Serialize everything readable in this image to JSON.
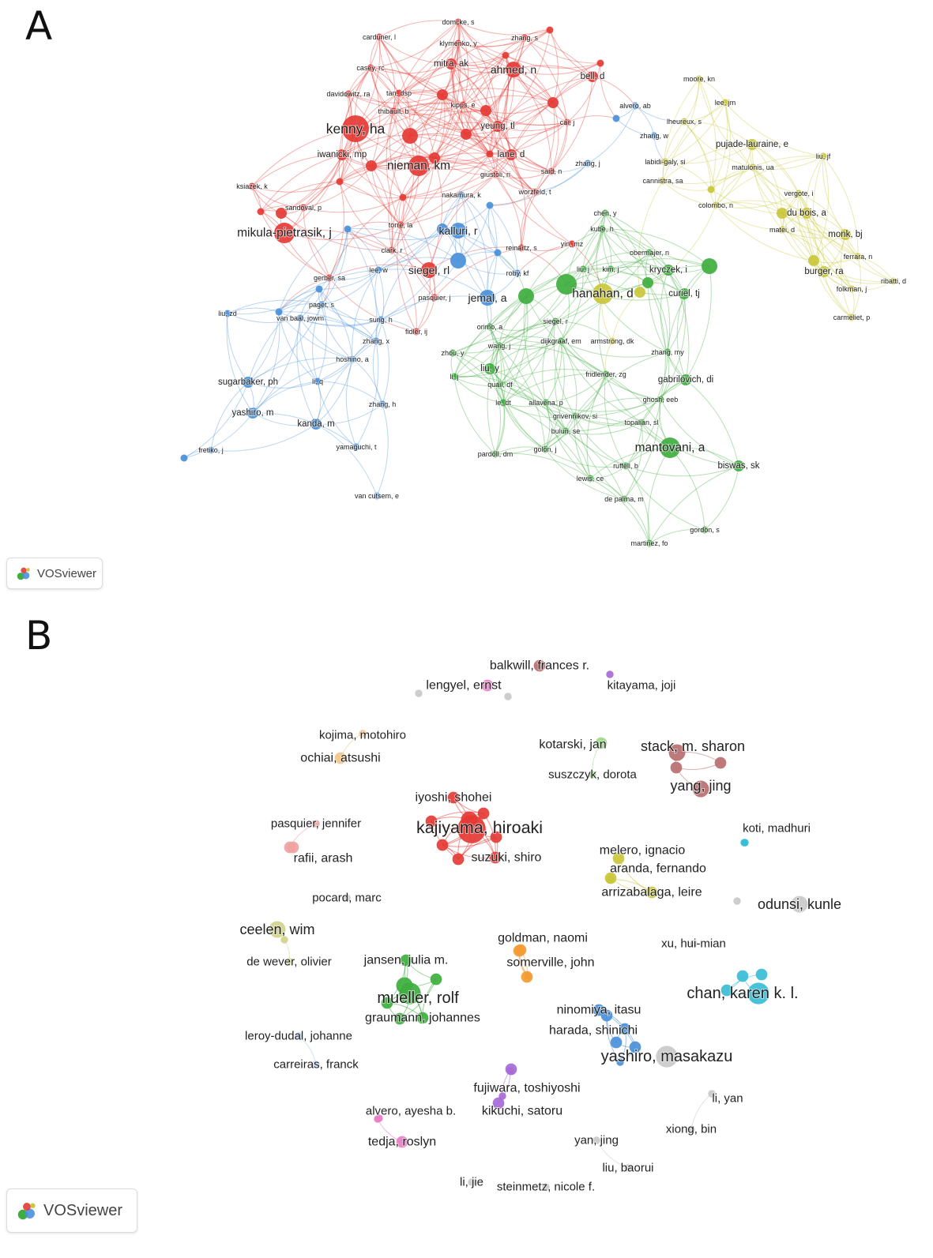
{
  "panels": {
    "a": {
      "letter": "A",
      "brand": "VOSviewer",
      "brand_icon": "vosviewer-logo-icon"
    },
    "b": {
      "letter": "B",
      "brand": "VOSviewer",
      "brand_icon": "vosviewer-logo-icon"
    }
  },
  "colors": {
    "red": "#e53935",
    "blue": "#4a90d9",
    "green": "#3fae3f",
    "yellow": "#c9c73a",
    "orange": "#f39c34",
    "purple": "#a66bd6",
    "pink": "#e67fc5",
    "cyan": "#39bdd6",
    "light_green": "#9ed68a",
    "brown": "#b96f6f",
    "salmon": "#f0a3a3",
    "olive": "#d0d48a",
    "grey": "#c9c9c9",
    "light_blue": "#a8c8ee",
    "tan": "#f2c48a"
  },
  "network_a": {
    "nodes": [
      {
        "label": "domcke, s",
        "c": "red",
        "s": 1
      },
      {
        "label": "carduner, l",
        "c": "red",
        "s": 1
      },
      {
        "label": "klymenko, y",
        "c": "red",
        "s": 1
      },
      {
        "label": "zhang, s",
        "c": "red",
        "s": 1
      },
      {
        "label": "mitra, ak",
        "c": "red",
        "s": 2
      },
      {
        "label": "ahmed, n",
        "c": "red",
        "s": 3
      },
      {
        "label": "casey, rc",
        "c": "red",
        "s": 1
      },
      {
        "label": "bell, d",
        "c": "red",
        "s": 2
      },
      {
        "label": "moore, kn",
        "c": "yellow",
        "s": 1
      },
      {
        "label": "davidowitz, ra",
        "c": "red",
        "s": 1
      },
      {
        "label": "tan, dsp",
        "c": "red",
        "s": 1
      },
      {
        "label": "thibault, b",
        "c": "red",
        "s": 1
      },
      {
        "label": "kipps, e",
        "c": "red",
        "s": 1
      },
      {
        "label": "alvero, ab",
        "c": "blue",
        "s": 1
      },
      {
        "label": "lee, jm",
        "c": "yellow",
        "s": 1
      },
      {
        "label": "kenny, ha",
        "c": "red",
        "s": 5
      },
      {
        "label": "yeung, tl",
        "c": "red",
        "s": 2
      },
      {
        "label": "cai, j",
        "c": "red",
        "s": 1
      },
      {
        "label": "lheureux, s",
        "c": "yellow",
        "s": 1
      },
      {
        "label": "zhang, w",
        "c": "blue",
        "s": 1
      },
      {
        "label": "pujade-lauraine, e",
        "c": "yellow",
        "s": 2
      },
      {
        "label": "iwanicki, mp",
        "c": "red",
        "s": 2
      },
      {
        "label": "lane, d",
        "c": "red",
        "s": 2
      },
      {
        "label": "liu, jf",
        "c": "yellow",
        "s": 1
      },
      {
        "label": "nieman, km",
        "c": "red",
        "s": 4
      },
      {
        "label": "zhang, j",
        "c": "blue",
        "s": 1
      },
      {
        "label": "labidi-galy, si",
        "c": "yellow",
        "s": 1
      },
      {
        "label": "matulonis, ua",
        "c": "yellow",
        "s": 1
      },
      {
        "label": "giustoli, ri",
        "c": "red",
        "s": 1
      },
      {
        "label": "said, n",
        "c": "red",
        "s": 1
      },
      {
        "label": "ksiazek, k",
        "c": "red",
        "s": 1
      },
      {
        "label": "cannistra, sa",
        "c": "yellow",
        "s": 1
      },
      {
        "label": "nakamura, k",
        "c": "blue",
        "s": 1
      },
      {
        "label": "worzfeld, t",
        "c": "red",
        "s": 1
      },
      {
        "label": "vergote, i",
        "c": "yellow",
        "s": 1
      },
      {
        "label": "sandoval, p",
        "c": "red",
        "s": 1
      },
      {
        "label": "colombo, n",
        "c": "yellow",
        "s": 1
      },
      {
        "label": "chen, y",
        "c": "green",
        "s": 1
      },
      {
        "label": "du bois, a",
        "c": "yellow",
        "s": 2
      },
      {
        "label": "mikula-pietrasik, j",
        "c": "red",
        "s": 4
      },
      {
        "label": "torre, la",
        "c": "red",
        "s": 1
      },
      {
        "label": "kalluri, r",
        "c": "blue",
        "s": 3
      },
      {
        "label": "kube, h",
        "c": "green",
        "s": 1
      },
      {
        "label": "matei, d",
        "c": "yellow",
        "s": 1
      },
      {
        "label": "monk, bj",
        "c": "yellow",
        "s": 2
      },
      {
        "label": "clark, r",
        "c": "red",
        "s": 1
      },
      {
        "label": "reinartz, s",
        "c": "red",
        "s": 1
      },
      {
        "label": "yin, mz",
        "c": "red",
        "s": 1
      },
      {
        "label": "obermajer, n",
        "c": "green",
        "s": 1
      },
      {
        "label": "ferrara, n",
        "c": "yellow",
        "s": 1
      },
      {
        "label": "lee, w",
        "c": "blue",
        "s": 1
      },
      {
        "label": "siegel, rl",
        "c": "red",
        "s": 3
      },
      {
        "label": "roby, kf",
        "c": "blue",
        "s": 1
      },
      {
        "label": "liu, j",
        "c": "green",
        "s": 1
      },
      {
        "label": "kim, j",
        "c": "green",
        "s": 1
      },
      {
        "label": "kryczek, i",
        "c": "green",
        "s": 2
      },
      {
        "label": "burger, ra",
        "c": "yellow",
        "s": 2
      },
      {
        "label": "ribatti, d",
        "c": "yellow",
        "s": 1
      },
      {
        "label": "gerber, sa",
        "c": "red",
        "s": 1
      },
      {
        "label": "pasquier, j",
        "c": "red",
        "s": 1
      },
      {
        "label": "jemal, a",
        "c": "blue",
        "s": 3
      },
      {
        "label": "hanahan, d",
        "c": "yellow",
        "s": 4
      },
      {
        "label": "curiel, tj",
        "c": "green",
        "s": 2
      },
      {
        "label": "folkman, j",
        "c": "yellow",
        "s": 1
      },
      {
        "label": "paget, s",
        "c": "blue",
        "s": 1
      },
      {
        "label": "liu, zd",
        "c": "blue",
        "s": 1
      },
      {
        "label": "van baal, jowm",
        "c": "blue",
        "s": 1
      },
      {
        "label": "sung, h",
        "c": "blue",
        "s": 1
      },
      {
        "label": "siegel, r",
        "c": "green",
        "s": 1
      },
      {
        "label": "fidler, ij",
        "c": "red",
        "s": 1
      },
      {
        "label": "orimo, a",
        "c": "green",
        "s": 1
      },
      {
        "label": "dijkgraaf, em",
        "c": "green",
        "s": 1
      },
      {
        "label": "armstrong, dk",
        "c": "yellow",
        "s": 1
      },
      {
        "label": "carmeliet, p",
        "c": "yellow",
        "s": 1
      },
      {
        "label": "zhang, x",
        "c": "blue",
        "s": 1
      },
      {
        "label": "wang, j",
        "c": "green",
        "s": 1
      },
      {
        "label": "zhang, my",
        "c": "green",
        "s": 1
      },
      {
        "label": "hoshino, a",
        "c": "blue",
        "s": 1
      },
      {
        "label": "zhou, y",
        "c": "green",
        "s": 1
      },
      {
        "label": "li, j",
        "c": "green",
        "s": 1
      },
      {
        "label": "liu, y",
        "c": "green",
        "s": 2
      },
      {
        "label": "fridlender, zg",
        "c": "green",
        "s": 1
      },
      {
        "label": "sugarbaker, ph",
        "c": "blue",
        "s": 2
      },
      {
        "label": "li, q",
        "c": "blue",
        "s": 1
      },
      {
        "label": "quail, df",
        "c": "green",
        "s": 1
      },
      {
        "label": "gabrilovich, di",
        "c": "green",
        "s": 2
      },
      {
        "label": "le, dt",
        "c": "green",
        "s": 1
      },
      {
        "label": "allavena, p",
        "c": "green",
        "s": 1
      },
      {
        "label": "ghosh, eeb",
        "c": "green",
        "s": 1
      },
      {
        "label": "zhang, h",
        "c": "blue",
        "s": 1
      },
      {
        "label": "yashiro, m",
        "c": "blue",
        "s": 2
      },
      {
        "label": "grivennikov, si",
        "c": "green",
        "s": 1
      },
      {
        "label": "topalian, sl",
        "c": "green",
        "s": 1
      },
      {
        "label": "kanda, m",
        "c": "blue",
        "s": 2
      },
      {
        "label": "bulun, se",
        "c": "green",
        "s": 1
      },
      {
        "label": "mantovani, a",
        "c": "green",
        "s": 4
      },
      {
        "label": "yamaguchi, t",
        "c": "blue",
        "s": 1
      },
      {
        "label": "golon, j",
        "c": "green",
        "s": 1
      },
      {
        "label": "pardoll, dm",
        "c": "green",
        "s": 1
      },
      {
        "label": "fretiko, j",
        "c": "blue",
        "s": 1
      },
      {
        "label": "ruffell, b",
        "c": "green",
        "s": 1
      },
      {
        "label": "biswas, sk",
        "c": "green",
        "s": 2
      },
      {
        "label": "lewis, ce",
        "c": "green",
        "s": 1
      },
      {
        "label": "van cutsem, e",
        "c": "blue",
        "s": 1
      },
      {
        "label": "de palma, m",
        "c": "green",
        "s": 1
      },
      {
        "label": "gordon, s",
        "c": "green",
        "s": 1
      },
      {
        "label": "martinez, fo",
        "c": "green",
        "s": 1
      }
    ]
  },
  "network_b": {
    "nodes": [
      {
        "label": "balkwill, frances r.",
        "c": "brown",
        "s": 2
      },
      {
        "label": "lengyel, ernst",
        "c": "pink",
        "s": 2
      },
      {
        "label": "kitayama, joji",
        "c": "purple",
        "s": 1
      },
      {
        "label": "kojima, motohiro",
        "c": "tan",
        "s": 1
      },
      {
        "label": "kotarski, jan",
        "c": "light_green",
        "s": 2
      },
      {
        "label": "stack, m. sharon",
        "c": "brown",
        "s": 3
      },
      {
        "label": "ochiai, atsushi",
        "c": "tan",
        "s": 2
      },
      {
        "label": "suszczyk, dorota",
        "c": "light_green",
        "s": 1
      },
      {
        "label": "yang, jing",
        "c": "brown",
        "s": 3
      },
      {
        "label": "iyoshi, shohei",
        "c": "red",
        "s": 2
      },
      {
        "label": "pasquier, jennifer",
        "c": "salmon",
        "s": 1
      },
      {
        "label": "kajiyama, hiroaki",
        "c": "red",
        "s": 5
      },
      {
        "label": "koti, madhuri",
        "c": "cyan",
        "s": 1
      },
      {
        "label": "suzuki, shiro",
        "c": "red",
        "s": 2
      },
      {
        "label": "melero, ignacio",
        "c": "yellow",
        "s": 2
      },
      {
        "label": "rafii, arash",
        "c": "salmon",
        "s": 2
      },
      {
        "label": "aranda, fernando",
        "c": "yellow",
        "s": 2
      },
      {
        "label": "arrizabalaga, leire",
        "c": "yellow",
        "s": 2
      },
      {
        "label": "pocard, marc",
        "c": "grey",
        "s": 1
      },
      {
        "label": "odunsi, kunle",
        "c": "grey",
        "s": 3
      },
      {
        "label": "ceelen, wim",
        "c": "olive",
        "s": 3
      },
      {
        "label": "goldman, naomi",
        "c": "orange",
        "s": 2
      },
      {
        "label": "xu, hui-mian",
        "c": "grey",
        "s": 1
      },
      {
        "label": "de wever, olivier",
        "c": "olive",
        "s": 1
      },
      {
        "label": "jansen, julia m.",
        "c": "green",
        "s": 2
      },
      {
        "label": "somerville, john",
        "c": "orange",
        "s": 2
      },
      {
        "label": "chan, karen k. l.",
        "c": "cyan",
        "s": 4
      },
      {
        "label": "mueller, rolf",
        "c": "green",
        "s": 4
      },
      {
        "label": "ninomiya, itasu",
        "c": "blue",
        "s": 2
      },
      {
        "label": "graumann, johannes",
        "c": "green",
        "s": 2
      },
      {
        "label": "harada, shinichi",
        "c": "blue",
        "s": 2
      },
      {
        "label": "leroy-dudal, johanne",
        "c": "light_blue",
        "s": 1
      },
      {
        "label": "yashiro, masakazu",
        "c": "grey",
        "s": 4
      },
      {
        "label": "carreiras, franck",
        "c": "light_blue",
        "s": 1
      },
      {
        "label": "fujiwara, toshiyoshi",
        "c": "purple",
        "s": 2
      },
      {
        "label": "li, yan",
        "c": "grey",
        "s": 1
      },
      {
        "label": "alvero, ayesha b.",
        "c": "pink",
        "s": 1
      },
      {
        "label": "kikuchi, satoru",
        "c": "purple",
        "s": 2
      },
      {
        "label": "xiong, bin",
        "c": "grey",
        "s": 1
      },
      {
        "label": "tedja, roslyn",
        "c": "pink",
        "s": 2
      },
      {
        "label": "yan, jing",
        "c": "grey",
        "s": 1
      },
      {
        "label": "liu, baorui",
        "c": "grey",
        "s": 1
      },
      {
        "label": "li, jie",
        "c": "grey",
        "s": 1
      },
      {
        "label": "steinmetz, nicole f.",
        "c": "grey",
        "s": 1
      }
    ]
  }
}
